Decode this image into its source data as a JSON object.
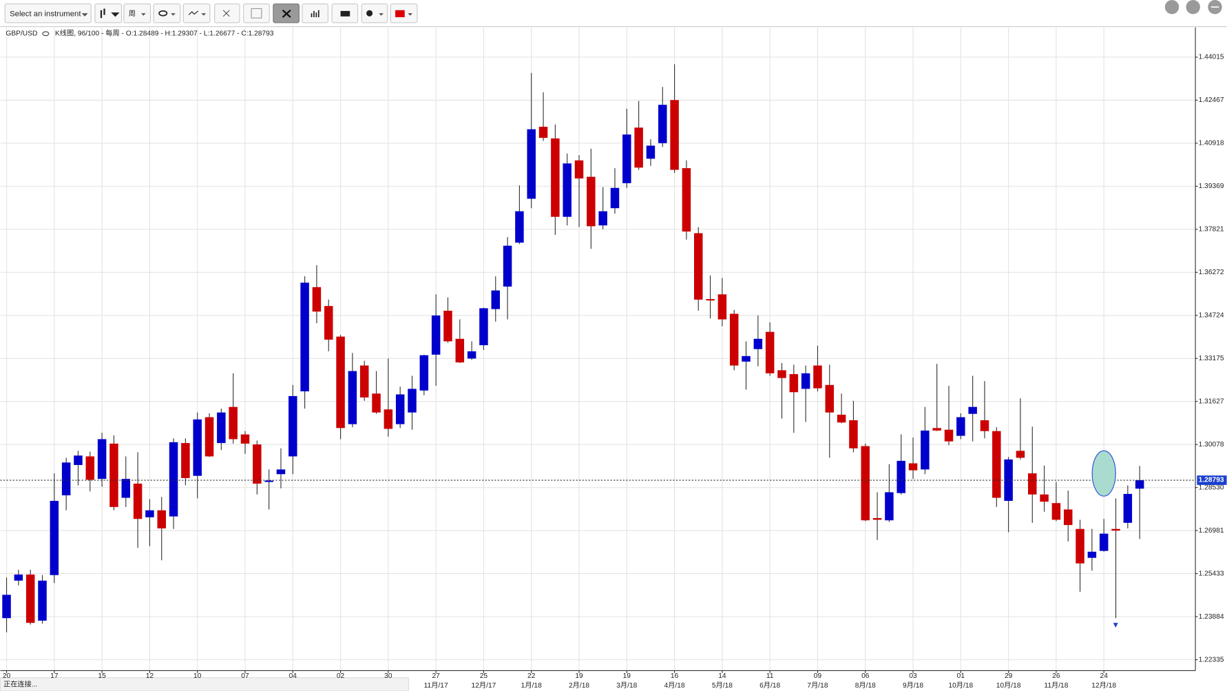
{
  "toolbar": {
    "instrument_select": "Select an instrument",
    "period": "周"
  },
  "status": "正在连接...",
  "chart_data": {
    "type": "candlestick",
    "symbol": "GBP/USD",
    "info": "K线图, 96/100 - 每周 - O:1.28489 - H:1.29307 - L:1.26677 - C:1.28793",
    "categories": [
      "20",
      null,
      null,
      null,
      "17",
      null,
      null,
      null,
      "15",
      null,
      null,
      null,
      "12",
      null,
      null,
      null,
      "10",
      null,
      null,
      null,
      "07",
      null,
      null,
      null,
      "04",
      null,
      null,
      null,
      "02",
      null,
      null,
      null,
      "30",
      null,
      null,
      null,
      "27",
      null,
      null,
      null,
      "25",
      null,
      null,
      null,
      "22",
      null,
      null,
      null,
      "19",
      null,
      null,
      null,
      "19",
      null,
      null,
      null,
      "16",
      null,
      null,
      null,
      "14",
      null,
      null,
      null,
      "11",
      null,
      null,
      null,
      "09",
      null,
      null,
      null,
      "06",
      null,
      null,
      null,
      "03",
      null,
      null,
      null,
      "01",
      null,
      null,
      null,
      "29",
      null,
      null,
      null,
      "26",
      null,
      null,
      null,
      "24",
      null,
      null,
      null
    ],
    "months": [
      null,
      null,
      null,
      null,
      null,
      null,
      null,
      null,
      null,
      null,
      null,
      null,
      null,
      null,
      null,
      null,
      null,
      null,
      null,
      null,
      null,
      null,
      null,
      null,
      null,
      null,
      null,
      null,
      null,
      null,
      null,
      null,
      null,
      null,
      null,
      null,
      "11月/17",
      null,
      null,
      null,
      "12月/17",
      null,
      null,
      null,
      "1月/18",
      null,
      null,
      null,
      "2月/18",
      null,
      null,
      null,
      "3月/18",
      null,
      null,
      null,
      "4月/18",
      null,
      null,
      null,
      "5月/18",
      null,
      null,
      null,
      "6月/18",
      null,
      null,
      null,
      "7月/18",
      null,
      null,
      null,
      "8月/18",
      null,
      null,
      null,
      "9月/18",
      null,
      null,
      null,
      "10月/18",
      null,
      null,
      null,
      "10月/18",
      null,
      null,
      null,
      "11月/18",
      null,
      null,
      null,
      "12月/18",
      null,
      null,
      null
    ],
    "open": [
      1.2383,
      1.2518,
      1.254,
      1.2374,
      1.2538,
      1.2825,
      1.2934,
      1.2965,
      1.2884,
      1.3011,
      1.2816,
      1.2867,
      1.2746,
      1.2771,
      1.2749,
      1.3013,
      1.2895,
      1.3106,
      1.3013,
      1.3143,
      1.3044,
      1.3008,
      1.2873,
      1.2901,
      1.2965,
      1.3199,
      1.3574,
      1.3506,
      1.3396,
      1.3081,
      1.3292,
      1.3191,
      1.3134,
      1.3081,
      1.3123,
      1.3202,
      1.3331,
      1.3489,
      1.3388,
      1.3317,
      1.3365,
      1.3495,
      1.3576,
      1.3734,
      1.3892,
      1.4151,
      1.4109,
      1.3827,
      1.403,
      1.3971,
      1.3796,
      1.3858,
      1.3948,
      1.4148,
      1.4036,
      1.4092,
      1.4247,
      1.4002,
      1.3768,
      1.3531,
      1.3548,
      1.3478,
      1.3306,
      1.3351,
      1.3413,
      1.3275,
      1.3261,
      1.3208,
      1.3292,
      1.3222,
      1.3115,
      1.3095,
      1.3002,
      1.2743,
      1.2735,
      1.2833,
      1.294,
      1.2918,
      1.3067,
      1.3061,
      1.3039,
      1.3118,
      1.3095,
      1.3056,
      1.2805,
      1.2985,
      1.2904,
      1.2828,
      1.2797,
      1.2774,
      1.2704,
      1.26,
      1.2625,
      1.2704,
      1.2726,
      1.28489
    ],
    "high": [
      1.2529,
      1.2557,
      1.2557,
      1.2538,
      1.2904,
      1.296,
      1.2985,
      1.2982,
      1.305,
      1.3041,
      1.2965,
      1.298,
      1.2811,
      1.2819,
      1.303,
      1.303,
      1.3123,
      1.312,
      1.3137,
      1.3264,
      1.3056,
      1.3022,
      1.2918,
      1.2994,
      1.3222,
      1.3613,
      1.3653,
      1.3529,
      1.3402,
      1.3337,
      1.3309,
      1.3272,
      1.3317,
      1.3216,
      1.3255,
      1.3331,
      1.3548,
      1.3537,
      1.3458,
      1.3379,
      1.35,
      1.3613,
      1.3754,
      1.394,
      1.4345,
      1.4275,
      1.4159,
      1.4055,
      1.4049,
      1.4072,
      1.3934,
      1.4002,
      1.4216,
      1.4244,
      1.4106,
      1.4294,
      1.4376,
      1.403,
      1.379,
      1.3616,
      1.3607,
      1.3492,
      1.3379,
      1.3472,
      1.3447,
      1.3301,
      1.3295,
      1.3292,
      1.3363,
      1.3295,
      1.3191,
      1.3165,
      1.3011,
      1.2836,
      1.2937,
      1.3044,
      1.3033,
      1.3143,
      1.3298,
      1.3219,
      1.312,
      1.3255,
      1.3236,
      1.307,
      1.2963,
      1.3174,
      1.3072,
      1.2932,
      1.2873,
      1.2842,
      1.2737,
      1.2704,
      1.274,
      1.2814,
      1.2861,
      1.29307
    ],
    "low": [
      1.2332,
      1.2501,
      1.236,
      1.2363,
      1.2509,
      1.2771,
      1.2861,
      1.2839,
      1.2856,
      1.2771,
      1.2783,
      1.2636,
      1.2642,
      1.2591,
      1.2704,
      1.2861,
      1.2814,
      1.2963,
      1.2988,
      1.3011,
      1.2974,
      1.2828,
      1.2774,
      1.285,
      1.2901,
      1.3137,
      1.3444,
      1.3343,
      1.3027,
      1.307,
      1.3165,
      1.3118,
      1.3036,
      1.3067,
      1.3061,
      1.3185,
      1.3219,
      1.3374,
      1.3301,
      1.3312,
      1.3348,
      1.345,
      1.3458,
      1.3729,
      1.3858,
      1.41,
      1.3762,
      1.3796,
      1.379,
      1.3712,
      1.3782,
      1.3838,
      1.3931,
      1.3996,
      1.401,
      1.4078,
      1.3985,
      1.3745,
      1.3489,
      1.3461,
      1.3433,
      1.3275,
      1.3205,
      1.3289,
      1.3255,
      1.3101,
      1.305,
      1.3089,
      1.3199,
      1.296,
      1.3084,
      1.298,
      1.2732,
      1.2664,
      1.2729,
      1.2828,
      1.2884,
      1.2901,
      1.3056,
      1.3005,
      1.3027,
      1.3019,
      1.303,
      1.2783,
      1.2692,
      1.2954,
      1.2726,
      1.2766,
      1.2732,
      1.2659,
      1.2478,
      1.2554,
      1.2622,
      1.2383,
      1.2706,
      1.26677
    ],
    "close": [
      1.2467,
      1.254,
      1.2366,
      1.2518,
      1.2805,
      1.2943,
      1.2968,
      1.2881,
      1.3027,
      1.2783,
      1.2884,
      1.274,
      1.2771,
      1.2706,
      1.3016,
      1.2887,
      1.3098,
      1.2965,
      1.3123,
      1.3027,
      1.3011,
      1.2867,
      1.2878,
      1.2918,
      1.3182,
      1.359,
      1.3486,
      1.3385,
      1.3067,
      1.3272,
      1.3177,
      1.3123,
      1.3064,
      1.3188,
      1.3208,
      1.3329,
      1.3472,
      1.3379,
      1.3303,
      1.3343,
      1.3498,
      1.3562,
      1.3723,
      1.3847,
      1.4142,
      1.4111,
      1.3827,
      1.4019,
      1.3965,
      1.3793,
      1.3847,
      1.3931,
      1.4123,
      1.4004,
      1.4083,
      1.423,
      1.3996,
      1.3774,
      1.3529,
      1.3526,
      1.3458,
      1.3292,
      1.3326,
      1.3388,
      1.3264,
      1.3247,
      1.3196,
      1.3264,
      1.321,
      1.3123,
      1.3087,
      1.2994,
      1.2735,
      1.2737,
      1.2836,
      1.2949,
      1.2915,
      1.3058,
      1.3058,
      1.3019,
      1.3106,
      1.3143,
      1.3056,
      1.2816,
      1.2954,
      1.296,
      1.2828,
      1.2802,
      1.2737,
      1.2718,
      1.258,
      1.2622,
      1.2687,
      1.2698,
      1.283,
      1.28793
    ],
    "up_color": "#0000cc",
    "down_color": "#cc0000",
    "ylim": [
      1.21941,
      1.45085
    ],
    "yticks": [
      1.22335,
      1.23884,
      1.25433,
      1.26981,
      {
        "value": 1.2853,
        "label": "1.28530"
      },
      1.30078,
      1.31627,
      1.33175,
      1.34724,
      1.36272,
      1.37821,
      1.39369,
      1.40918,
      1.42467,
      1.44015
    ],
    "grid": true
  }
}
